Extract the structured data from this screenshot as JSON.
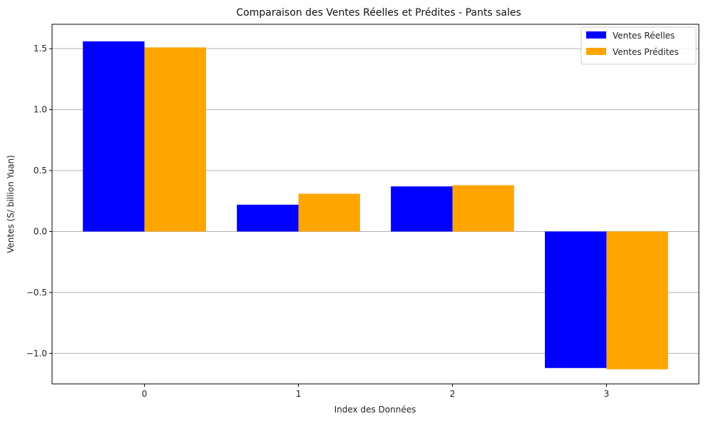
{
  "chart_data": {
    "type": "bar",
    "title": "Comparaison des Ventes Réelles et Prédites - Pants sales",
    "xlabel": "Index des Données",
    "ylabel": "Ventes (S/ billion Yuan)",
    "categories": [
      "0",
      "1",
      "2",
      "3"
    ],
    "series": [
      {
        "name": "Ventes Réelles",
        "color": "#0000ff",
        "values": [
          1.56,
          0.22,
          0.37,
          -1.12
        ]
      },
      {
        "name": "Ventes Prédites",
        "color": "#ffa500",
        "values": [
          1.51,
          0.31,
          0.38,
          -1.13
        ]
      }
    ],
    "ylim": [
      -1.25,
      1.7
    ],
    "yticks": [
      -1.0,
      -0.5,
      0.0,
      0.5,
      1.0,
      1.5
    ],
    "ytick_labels": [
      "−1.0",
      "−0.5",
      "0.0",
      "0.5",
      "1.0",
      "1.5"
    ],
    "grid": "y-major",
    "legend_position": "top-right"
  }
}
